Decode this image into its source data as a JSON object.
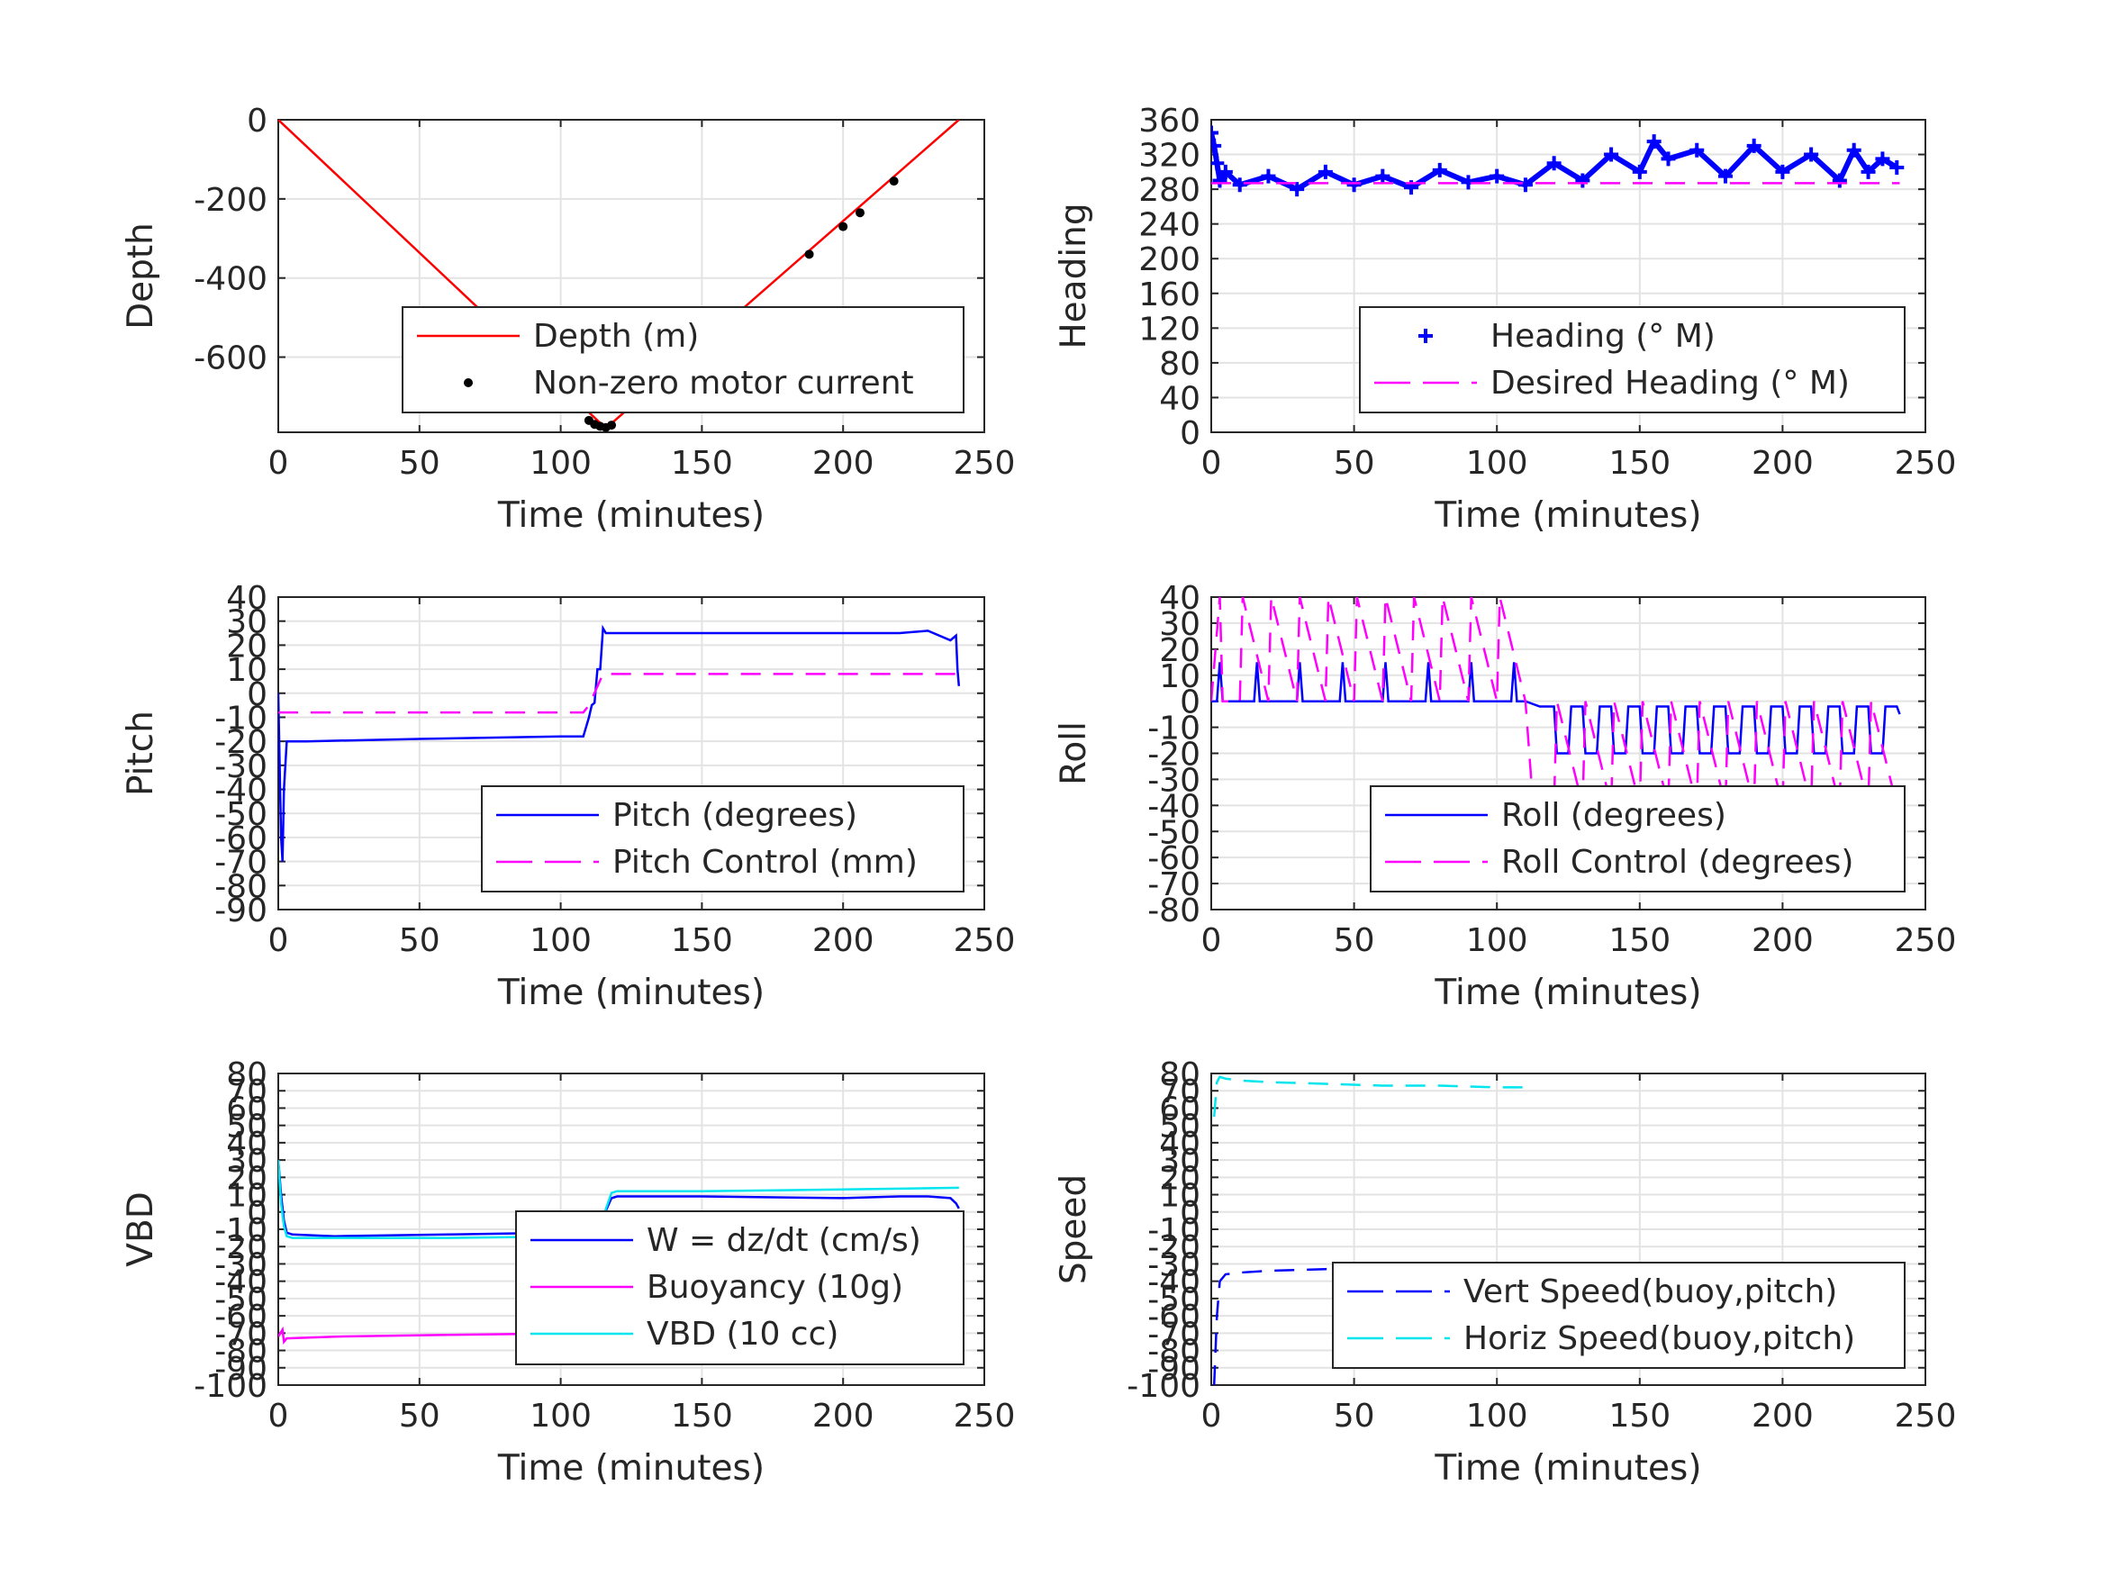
{
  "chart_data": [
    {
      "id": "depth",
      "type": "line",
      "xlabel": "Time (minutes)",
      "ylabel": "Depth",
      "xlim": [
        0,
        250
      ],
      "ylim": [
        -790,
        0
      ],
      "xticks": [
        "0",
        "50",
        "100",
        "150",
        "200",
        "250"
      ],
      "yticks": [
        "0",
        "-200",
        "-400",
        "-600"
      ],
      "ytick_values": [
        0,
        -200,
        -400,
        -600
      ],
      "legend_position": "bottom-right",
      "series": [
        {
          "name": "Depth (m)",
          "color": "#ff0000",
          "style": "solid",
          "x": [
            0,
            116,
            241
          ],
          "y": [
            0,
            -780,
            0
          ]
        },
        {
          "name": "Non-zero motor current",
          "color": "#000000",
          "style": "dot",
          "x": [
            110,
            112,
            114,
            116,
            118,
            188,
            200,
            206,
            218
          ],
          "y": [
            -760,
            -770,
            -775,
            -778,
            -772,
            -340,
            -270,
            -235,
            -155
          ]
        }
      ]
    },
    {
      "id": "heading",
      "type": "scatter",
      "xlabel": "Time (minutes)",
      "ylabel": "Heading",
      "xlim": [
        0,
        250
      ],
      "ylim": [
        0,
        360
      ],
      "xticks": [
        "0",
        "50",
        "100",
        "150",
        "200",
        "250"
      ],
      "yticks": [
        "0",
        "40",
        "80",
        "120",
        "160",
        "200",
        "240",
        "280",
        "320",
        "360"
      ],
      "ytick_values": [
        0,
        40,
        80,
        120,
        160,
        200,
        240,
        280,
        320,
        360
      ],
      "legend_position": "bottom-right",
      "series": [
        {
          "name": "Heading (° M)",
          "color": "#0000ff",
          "style": "plus",
          "x": [
            0,
            1,
            2,
            3,
            5,
            10,
            20,
            30,
            40,
            50,
            60,
            70,
            80,
            90,
            100,
            110,
            120,
            130,
            140,
            150,
            155,
            160,
            170,
            180,
            190,
            200,
            210,
            220,
            225,
            230,
            235,
            240
          ],
          "y": [
            345,
            330,
            310,
            290,
            300,
            285,
            295,
            280,
            300,
            285,
            295,
            282,
            302,
            288,
            295,
            285,
            310,
            290,
            320,
            300,
            335,
            315,
            325,
            295,
            330,
            300,
            320,
            290,
            325,
            300,
            315,
            305
          ]
        },
        {
          "name": "Desired Heading (° M)",
          "color": "#ff00ff",
          "style": "dash",
          "x": [
            0,
            241
          ],
          "y": [
            287,
            287
          ]
        }
      ]
    },
    {
      "id": "pitch",
      "type": "line",
      "xlabel": "Time (minutes)",
      "ylabel": "Pitch",
      "xlim": [
        0,
        250
      ],
      "ylim": [
        -90,
        40
      ],
      "xticks": [
        "0",
        "50",
        "100",
        "150",
        "200",
        "250"
      ],
      "yticks": [
        "-90",
        "-80",
        "-70",
        "-60",
        "-50",
        "-40",
        "-30",
        "-20",
        "-10",
        "0",
        "10",
        "20",
        "30",
        "40"
      ],
      "ytick_values": [
        -90,
        -80,
        -70,
        -60,
        -50,
        -40,
        -30,
        -20,
        -10,
        0,
        10,
        20,
        30,
        40
      ],
      "legend_position": "bottom-right",
      "series": [
        {
          "name": "Pitch (degrees)",
          "color": "#0000ff",
          "style": "solid",
          "x": [
            0,
            1,
            1.5,
            2,
            3,
            10,
            50,
            100,
            108,
            110,
            111,
            112,
            113,
            114,
            115,
            116,
            120,
            150,
            200,
            220,
            230,
            238,
            240,
            240.5,
            241
          ],
          "y": [
            0,
            -60,
            -70,
            -40,
            -20,
            -20,
            -19,
            -18,
            -18,
            -10,
            -5,
            -4,
            10,
            10,
            27,
            25,
            25,
            25,
            25,
            25,
            26,
            22,
            24,
            10,
            3
          ]
        },
        {
          "name": "Pitch Control (mm)",
          "color": "#ff00ff",
          "style": "dash",
          "x": [
            0,
            108,
            110,
            115,
            241
          ],
          "y": [
            -8,
            -8,
            -5,
            8,
            8
          ]
        }
      ]
    },
    {
      "id": "roll",
      "type": "line",
      "xlabel": "Time (minutes)",
      "ylabel": "Roll",
      "xlim": [
        0,
        250
      ],
      "ylim": [
        -80,
        40
      ],
      "xticks": [
        "0",
        "50",
        "100",
        "150",
        "200",
        "250"
      ],
      "yticks": [
        "-80",
        "-70",
        "-60",
        "-50",
        "-40",
        "-30",
        "-20",
        "-10",
        "0",
        "10",
        "20",
        "30",
        "40"
      ],
      "ytick_values": [
        -80,
        -70,
        -60,
        -50,
        -40,
        -30,
        -20,
        -10,
        0,
        10,
        20,
        30,
        40
      ],
      "legend_position": "bottom-right",
      "series": [
        {
          "name": "Roll (degrees)",
          "color": "#0000ff",
          "style": "solid",
          "x": [
            0,
            2,
            3,
            4,
            5,
            15,
            16,
            17,
            30,
            31,
            32,
            45,
            46,
            47,
            60,
            61,
            62,
            75,
            76,
            77,
            90,
            91,
            92,
            105,
            106,
            107,
            110,
            115,
            120,
            121,
            125,
            126,
            130,
            131,
            135,
            136,
            140,
            141,
            145,
            146,
            150,
            151,
            155,
            156,
            160,
            161,
            165,
            166,
            170,
            171,
            175,
            176,
            180,
            181,
            185,
            186,
            190,
            191,
            195,
            196,
            200,
            201,
            205,
            206,
            210,
            211,
            215,
            216,
            220,
            221,
            225,
            226,
            230,
            231,
            235,
            236,
            240,
            241
          ],
          "y": [
            0,
            0,
            15,
            0,
            0,
            0,
            15,
            0,
            0,
            15,
            0,
            0,
            15,
            0,
            0,
            15,
            0,
            0,
            15,
            0,
            0,
            15,
            0,
            0,
            15,
            0,
            0,
            -2,
            -2,
            -20,
            -20,
            -2,
            -2,
            -20,
            -20,
            -2,
            -2,
            -20,
            -20,
            -2,
            -2,
            -20,
            -20,
            -2,
            -2,
            -20,
            -20,
            -2,
            -2,
            -20,
            -20,
            -2,
            -2,
            -20,
            -20,
            -2,
            -2,
            -20,
            -20,
            -2,
            -2,
            -20,
            -20,
            -2,
            -2,
            -20,
            -20,
            -2,
            -2,
            -20,
            -20,
            -2,
            -2,
            -20,
            -20,
            -2,
            -2,
            -5
          ]
        },
        {
          "name": "Roll Control (degrees)",
          "color": "#ff00ff",
          "style": "dash",
          "x": [
            0,
            3,
            4,
            10,
            11,
            20,
            21,
            30,
            31,
            40,
            41,
            50,
            51,
            60,
            61,
            70,
            71,
            80,
            81,
            90,
            91,
            100,
            101,
            110,
            112,
            120,
            121,
            130,
            131,
            140,
            141,
            150,
            151,
            160,
            161,
            170,
            171,
            180,
            181,
            190,
            191,
            200,
            201,
            210,
            211,
            220,
            221,
            230,
            231,
            240
          ],
          "y": [
            0,
            40,
            0,
            0,
            40,
            0,
            40,
            0,
            40,
            0,
            40,
            0,
            40,
            0,
            40,
            0,
            40,
            0,
            40,
            0,
            40,
            0,
            40,
            0,
            -30,
            -40,
            0,
            -40,
            0,
            -40,
            0,
            -40,
            0,
            -40,
            0,
            -40,
            0,
            -40,
            0,
            -40,
            0,
            -40,
            0,
            -40,
            0,
            -40,
            0,
            -40,
            0,
            -40
          ]
        }
      ]
    },
    {
      "id": "vbd",
      "type": "line",
      "xlabel": "Time (minutes)",
      "ylabel": "VBD",
      "xlim": [
        0,
        250
      ],
      "ylim": [
        -100,
        80
      ],
      "xticks": [
        "0",
        "50",
        "100",
        "150",
        "200",
        "250"
      ],
      "yticks": [
        "-100",
        "-90",
        "-80",
        "-70",
        "-60",
        "-50",
        "-40",
        "-30",
        "-20",
        "-10",
        "0",
        "10",
        "20",
        "30",
        "40",
        "50",
        "60",
        "70",
        "80"
      ],
      "ytick_values": [
        -100,
        -90,
        -80,
        -70,
        -60,
        -50,
        -40,
        -30,
        -20,
        -10,
        0,
        10,
        20,
        30,
        40,
        50,
        60,
        70,
        80
      ],
      "legend_position": "bottom-right",
      "series": [
        {
          "name": "W = dz/dt (cm/s)",
          "color": "#0000ff",
          "style": "solid",
          "x": [
            0,
            1,
            2,
            3,
            5,
            20,
            60,
            100,
            110,
            112,
            115,
            118,
            120,
            150,
            200,
            220,
            230,
            238,
            240,
            241
          ],
          "y": [
            30,
            10,
            -5,
            -12,
            -13,
            -14,
            -13,
            -12,
            -11,
            -10,
            -3,
            8,
            9,
            9,
            8,
            9,
            9,
            8,
            5,
            2
          ]
        },
        {
          "name": "Buoyancy (10g)",
          "color": "#ff00ff",
          "style": "solid",
          "x": [
            0,
            1.5,
            2,
            3,
            20,
            60,
            110
          ],
          "y": [
            -72,
            -68,
            -75,
            -73,
            -72,
            -71,
            -70
          ]
        },
        {
          "name": "VBD (10 cc)",
          "color": "#00e5ee",
          "style": "solid",
          "x": [
            0,
            1,
            2,
            3,
            5,
            60,
            110,
            115,
            118,
            120,
            150,
            200,
            241
          ],
          "y": [
            30,
            5,
            -8,
            -14,
            -15,
            -15,
            -14,
            -3,
            11,
            12,
            12,
            13,
            14
          ]
        }
      ]
    },
    {
      "id": "speed",
      "type": "line",
      "xlabel": "Time (minutes)",
      "ylabel": "Speed",
      "xlim": [
        0,
        250
      ],
      "ylim": [
        -100,
        80
      ],
      "xticks": [
        "0",
        "50",
        "100",
        "150",
        "200",
        "250"
      ],
      "yticks": [
        "-100",
        "-90",
        "-80",
        "-70",
        "-60",
        "-50",
        "-40",
        "-30",
        "-20",
        "-10",
        "0",
        "10",
        "20",
        "30",
        "40",
        "50",
        "60",
        "70",
        "80"
      ],
      "ytick_values": [
        -100,
        -90,
        -80,
        -70,
        -60,
        -50,
        -40,
        -30,
        -20,
        -10,
        0,
        10,
        20,
        30,
        40,
        50,
        60,
        70,
        80
      ],
      "legend_position": "bottom-right",
      "series": [
        {
          "name": "Vert Speed(buoy,pitch)",
          "color": "#0000ff",
          "style": "dash",
          "x": [
            1,
            2,
            3,
            5,
            10,
            20,
            40,
            60,
            80,
            100,
            110
          ],
          "y": [
            -100,
            -60,
            -40,
            -36,
            -35,
            -34,
            -33,
            -32,
            -32,
            -31,
            -31
          ]
        },
        {
          "name": "Horiz Speed(buoy,pitch)",
          "color": "#00e5ee",
          "style": "dash",
          "x": [
            1,
            2,
            3,
            5,
            10,
            20,
            40,
            60,
            80,
            100,
            110
          ],
          "y": [
            55,
            75,
            78,
            77,
            76,
            75,
            74,
            73,
            73,
            72,
            72
          ]
        }
      ]
    }
  ]
}
